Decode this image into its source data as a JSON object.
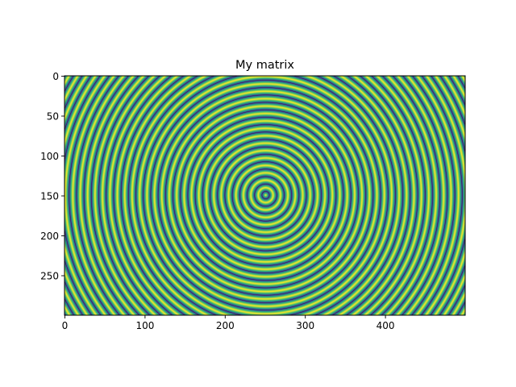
{
  "chart_data": {
    "type": "heatmap",
    "title": "My matrix",
    "xlabel": "",
    "ylabel": "",
    "matrix": {
      "rows": 300,
      "cols": 500,
      "center": [
        250,
        150
      ],
      "pattern": "sin of radial distance from center",
      "colormap": "viridis"
    },
    "xlim": [
      0,
      499
    ],
    "ylim": [
      299,
      0
    ],
    "x_ticks": [
      0,
      100,
      200,
      300,
      400
    ],
    "y_ticks": [
      0,
      50,
      100,
      150,
      200,
      250
    ],
    "x_tick_labels": [
      "0",
      "100",
      "200",
      "300",
      "400"
    ],
    "y_tick_labels": [
      "0",
      "50",
      "100",
      "150",
      "200",
      "250"
    ],
    "grid": false,
    "legend": "none"
  }
}
